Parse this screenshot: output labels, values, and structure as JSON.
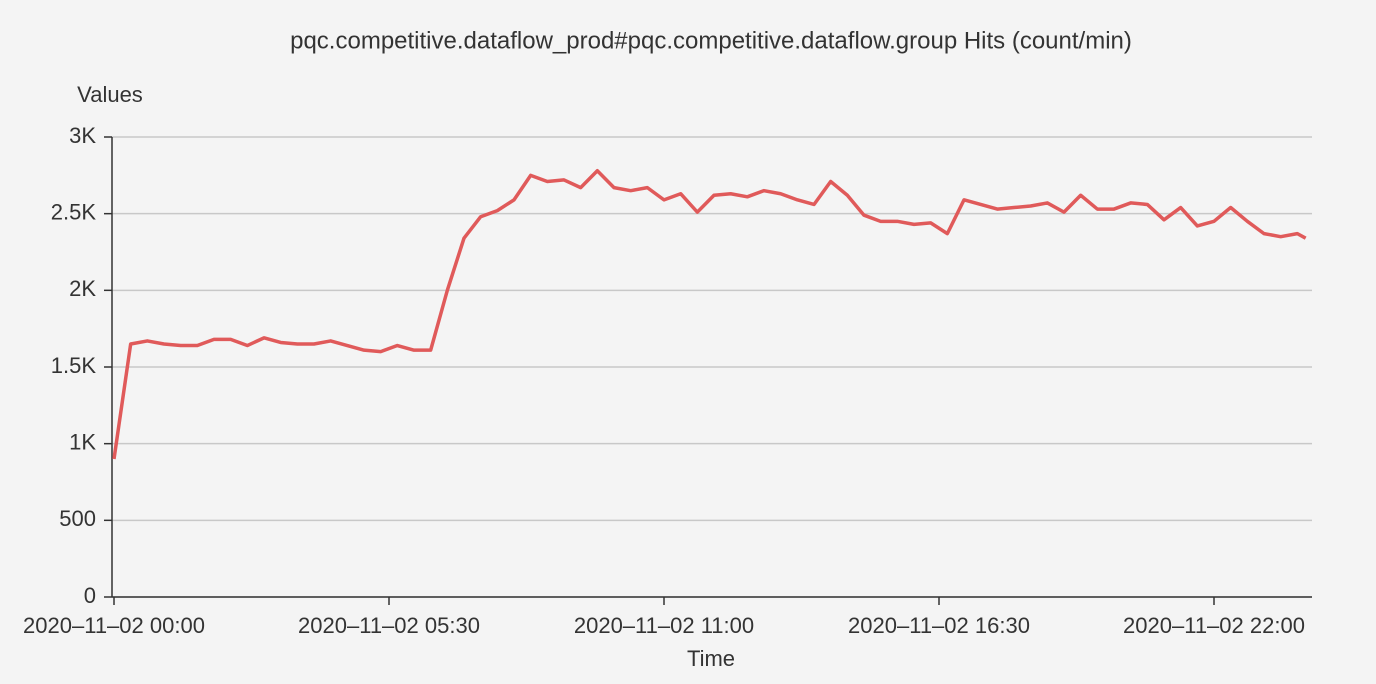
{
  "chart_data": {
    "type": "line",
    "title": "pqc.competitive.dataflow_prod#pqc.competitive.dataflow.group Hits (count/min)",
    "y_label": "Values",
    "x_label": "Time",
    "color": "#e05a5a",
    "grid": true,
    "ylim": [
      0,
      3000
    ],
    "yticks": [
      0,
      500,
      {
        "value": 1000,
        "label": "1K"
      },
      {
        "value": 1500,
        "label": "1.5K"
      },
      {
        "value": 2000,
        "label": "2K"
      },
      {
        "value": 2500,
        "label": "2.5K"
      },
      {
        "value": 3000,
        "label": "3K"
      }
    ],
    "xticks": [
      "2020–11–02 00:00",
      "2020–11–02 05:30",
      "2020–11–02 11:00",
      "2020–11–02 16:30",
      "2020–11–02 22:00"
    ],
    "x": [
      "2020–11–02 00:00",
      "2020–11–02 00:20",
      "2020–11–02 00:40",
      "2020–11–02 01:00",
      "2020–11–02 01:20",
      "2020–11–02 01:40",
      "2020–11–02 02:00",
      "2020–11–02 02:20",
      "2020–11–02 02:40",
      "2020–11–02 03:00",
      "2020–11–02 03:20",
      "2020–11–02 03:40",
      "2020–11–02 04:00",
      "2020–11–02 04:20",
      "2020–11–02 04:40",
      "2020–11–02 05:00",
      "2020–11–02 05:20",
      "2020–11–02 05:40",
      "2020–11–02 06:00",
      "2020–11–02 06:20",
      "2020–11–02 06:40",
      "2020–11–02 07:00",
      "2020–11–02 07:20",
      "2020–11–02 07:40",
      "2020–11–02 08:00",
      "2020–11–02 08:20",
      "2020–11–02 08:40",
      "2020–11–02 09:00",
      "2020–11–02 09:20",
      "2020–11–02 09:40",
      "2020–11–02 10:00",
      "2020–11–02 10:20",
      "2020–11–02 10:40",
      "2020–11–02 11:00",
      "2020–11–02 11:20",
      "2020–11–02 11:40",
      "2020–11–02 12:00",
      "2020–11–02 12:20",
      "2020–11–02 12:40",
      "2020–11–02 13:00",
      "2020–11–02 13:20",
      "2020–11–02 13:40",
      "2020–11–02 14:00",
      "2020–11–02 14:20",
      "2020–11–02 14:40",
      "2020–11–02 15:00",
      "2020–11–02 15:20",
      "2020–11–02 15:40",
      "2020–11–02 16:00",
      "2020–11–02 16:20",
      "2020–11–02 16:40",
      "2020–11–02 17:00",
      "2020–11–02 17:20",
      "2020–11–02 17:40",
      "2020–11–02 18:00",
      "2020–11–02 18:20",
      "2020–11–02 18:40",
      "2020–11–02 19:00",
      "2020–11–02 19:20",
      "2020–11–02 19:40",
      "2020–11–02 20:00",
      "2020–11–02 20:20",
      "2020–11–02 20:40",
      "2020–11–02 21:00",
      "2020–11–02 21:20",
      "2020–11–02 21:40",
      "2020–11–02 22:00",
      "2020–11–02 22:20",
      "2020–11–02 22:40",
      "2020–11–02 23:00",
      "2020–11–02 23:20",
      "2020–11–02 23:40",
      "2020–11–02 23:50"
    ],
    "values": [
      900,
      1650,
      1670,
      1650,
      1640,
      1640,
      1680,
      1680,
      1640,
      1690,
      1660,
      1650,
      1650,
      1670,
      1640,
      1610,
      1600,
      1640,
      1610,
      1610,
      2000,
      2340,
      2480,
      2520,
      2590,
      2750,
      2710,
      2720,
      2670,
      2780,
      2670,
      2650,
      2670,
      2590,
      2630,
      2510,
      2620,
      2630,
      2610,
      2650,
      2630,
      2590,
      2560,
      2710,
      2620,
      2490,
      2450,
      2450,
      2430,
      2440,
      2370,
      2590,
      2560,
      2530,
      2540,
      2550,
      2570,
      2510,
      2620,
      2530,
      2530,
      2570,
      2560,
      2460,
      2540,
      2420,
      2450,
      2540,
      2450,
      2370,
      2350,
      2370,
      2340
    ]
  }
}
